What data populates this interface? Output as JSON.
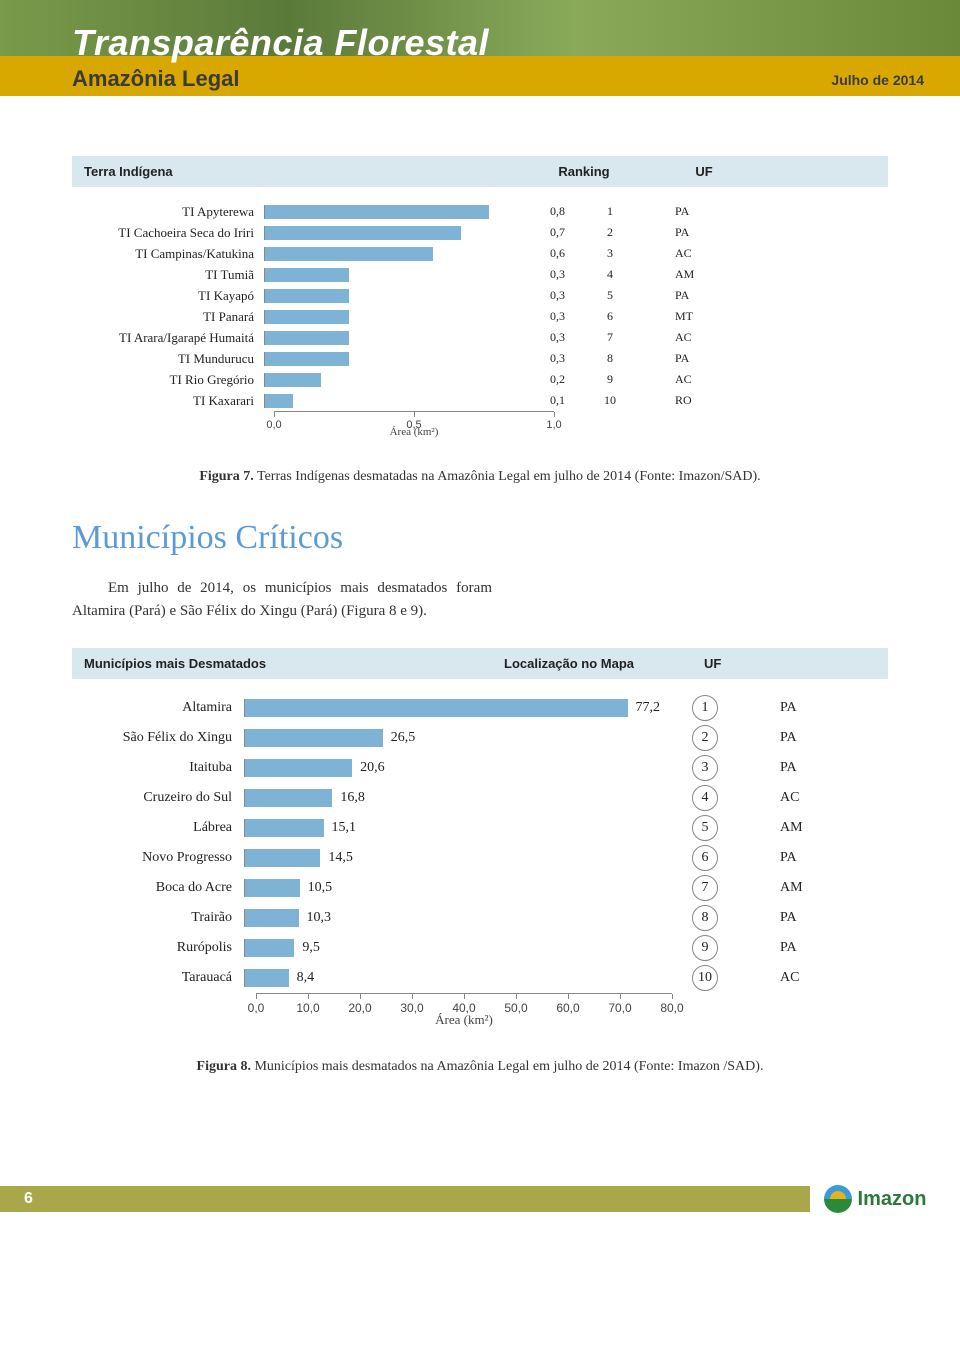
{
  "header": {
    "main_title": "Transparência Florestal",
    "subtitle": "Amazônia Legal",
    "date": "Julho de 2014"
  },
  "chart1": {
    "type": "bar",
    "header_label": "Terra Indígena",
    "header_rank": "Ranking",
    "header_uf": "UF",
    "bar_color": "#7fb3d5",
    "x_max": 1.0,
    "x_ticks": [
      "0,0",
      "0,5",
      "1,0"
    ],
    "x_label": "Área (km²)",
    "rows": [
      {
        "label": "TI Apyterewa",
        "value": 0.8,
        "value_label": "0,8",
        "rank": "1",
        "uf": "PA"
      },
      {
        "label": "TI Cachoeira Seca do Iriri",
        "value": 0.7,
        "value_label": "0,7",
        "rank": "2",
        "uf": "PA"
      },
      {
        "label": "TI Campinas/Katukina",
        "value": 0.6,
        "value_label": "0,6",
        "rank": "3",
        "uf": "AC"
      },
      {
        "label": "TI Tumiã",
        "value": 0.3,
        "value_label": "0,3",
        "rank": "4",
        "uf": "AM"
      },
      {
        "label": "TI Kayapó",
        "value": 0.3,
        "value_label": "0,3",
        "rank": "5",
        "uf": "PA"
      },
      {
        "label": "TI Panará",
        "value": 0.3,
        "value_label": "0,3",
        "rank": "6",
        "uf": "MT"
      },
      {
        "label": "TI Arara/Igarapé Humaitá",
        "value": 0.3,
        "value_label": "0,3",
        "rank": "7",
        "uf": "AC"
      },
      {
        "label": "TI Mundurucu",
        "value": 0.3,
        "value_label": "0,3",
        "rank": "8",
        "uf": "PA"
      },
      {
        "label": "TI Rio Gregório",
        "value": 0.2,
        "value_label": "0,2",
        "rank": "9",
        "uf": "AC"
      },
      {
        "label": "TI Kaxarari",
        "value": 0.1,
        "value_label": "0,1",
        "rank": "10",
        "uf": "RO"
      }
    ]
  },
  "caption1_bold": "Figura 7.",
  "caption1_text": " Terras Indígenas desmatadas na Amazônia Legal em julho de 2014 (Fonte: Imazon/SAD).",
  "section_title": "Municípios Críticos",
  "body_text": "Em julho de 2014, os municípios mais desmatados foram Altamira (Pará) e São Félix do Xingu (Pará) (Figura 8 e 9).",
  "chart2": {
    "type": "bar",
    "header_label": "Municípios mais Desmatados",
    "header_rank": "Localização no Mapa",
    "header_uf": "UF",
    "bar_color": "#7fb3d5",
    "x_max": 80.0,
    "x_ticks": [
      "0,0",
      "10,0",
      "20,0",
      "30,0",
      "40,0",
      "50,0",
      "60,0",
      "70,0",
      "80,0"
    ],
    "x_label": "Área (km²)",
    "rows": [
      {
        "label": "Altamira",
        "value": 77.2,
        "value_label": "77,2",
        "rank": "1",
        "uf": "PA"
      },
      {
        "label": "São Félix do Xingu",
        "value": 26.5,
        "value_label": "26,5",
        "rank": "2",
        "uf": "PA"
      },
      {
        "label": "Itaituba",
        "value": 20.6,
        "value_label": "20,6",
        "rank": "3",
        "uf": "PA"
      },
      {
        "label": "Cruzeiro do Sul",
        "value": 16.8,
        "value_label": "16,8",
        "rank": "4",
        "uf": "AC"
      },
      {
        "label": "Lábrea",
        "value": 15.1,
        "value_label": "15,1",
        "rank": "5",
        "uf": "AM"
      },
      {
        "label": "Novo Progresso",
        "value": 14.5,
        "value_label": "14,5",
        "rank": "6",
        "uf": "PA"
      },
      {
        "label": "Boca do Acre",
        "value": 10.5,
        "value_label": "10,5",
        "rank": "7",
        "uf": "AM"
      },
      {
        "label": "Trairão",
        "value": 10.3,
        "value_label": "10,3",
        "rank": "8",
        "uf": "PA"
      },
      {
        "label": "Rurópolis",
        "value": 9.5,
        "value_label": "9,5",
        "rank": "9",
        "uf": "PA"
      },
      {
        "label": "Tarauacá",
        "value": 8.4,
        "value_label": "8,4",
        "rank": "10",
        "uf": "AC"
      }
    ]
  },
  "caption2_bold": "Figura 8.",
  "caption2_text": " Municípios mais desmatados na Amazônia Legal em julho de 2014 (Fonte: Imazon /SAD).",
  "footer": {
    "page_number": "6",
    "logo_text": "Imazon",
    "logo_colors": {
      "sky": "#3a9bd5",
      "sun": "#e8b020",
      "ground": "#2a8a3a"
    }
  }
}
